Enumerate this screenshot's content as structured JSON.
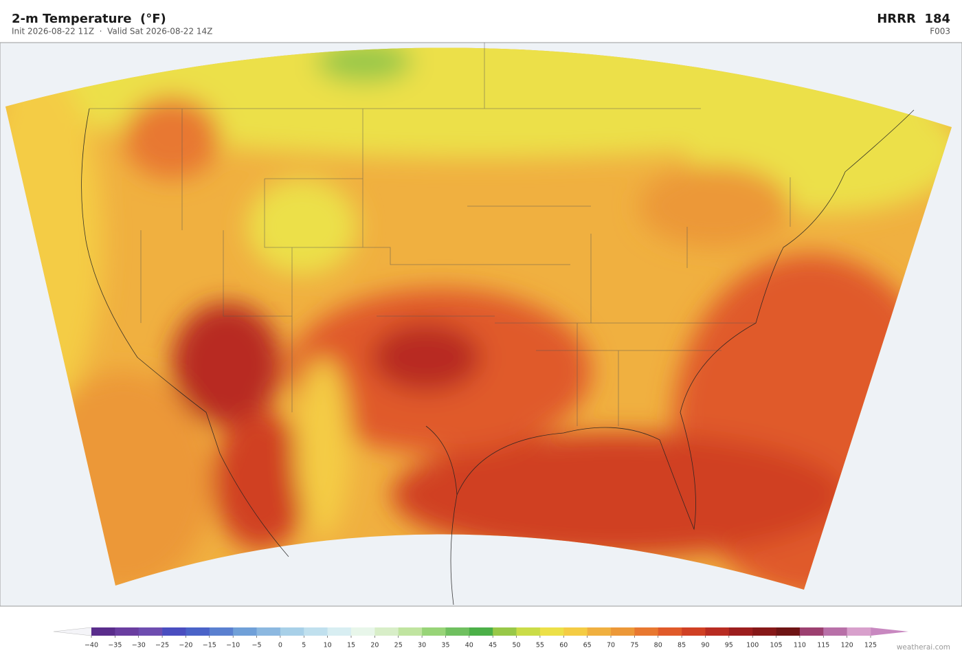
{
  "header": {
    "title": "2-m Temperature  (°F)",
    "subtitle": "Init 2026-08-22 11Z  ·  Valid Sat 2026-08-22 14Z",
    "model": "HRRR  184",
    "forecast_hour": "F003"
  },
  "colorbar": {
    "ticks": [
      {
        "value": -40,
        "label": "−40"
      },
      {
        "value": -35,
        "label": "−35"
      },
      {
        "value": -30,
        "label": "−30"
      },
      {
        "value": -25,
        "label": "−25"
      },
      {
        "value": -20,
        "label": "−20"
      },
      {
        "value": -15,
        "label": "−15"
      },
      {
        "value": -10,
        "label": "−10"
      },
      {
        "value": -5,
        "label": "−5"
      },
      0,
      5,
      10,
      15,
      20,
      25,
      30,
      35,
      40,
      45,
      50,
      55,
      60,
      65,
      70,
      75,
      80,
      85,
      90,
      95,
      100,
      105,
      110,
      115,
      120,
      125
    ],
    "colors": [
      "#5a2d8c",
      "#6a3ea0",
      "#6e4db0",
      "#4a4ec0",
      "#4a63c8",
      "#5a80d0",
      "#70a0d8",
      "#8cb8e0",
      "#a8d0e8",
      "#c0e0ee",
      "#d8eef2",
      "#e8f6ea",
      "#d8eec8",
      "#c0e4a0",
      "#98d478",
      "#70c060",
      "#4cb048",
      "#98c848",
      "#cadc48",
      "#ece048",
      "#f4cc44",
      "#f0b040",
      "#ec9838",
      "#e87830",
      "#e05a2a",
      "#d04024",
      "#b82c22",
      "#9c1e1e",
      "#861818",
      "#6e1414",
      "#9c4070",
      "#b870a8",
      "#d8a0cc"
    ],
    "extend_colors": [
      "#f4f4f8",
      "#c888c0"
    ]
  },
  "watermark": "weatherai.com"
}
